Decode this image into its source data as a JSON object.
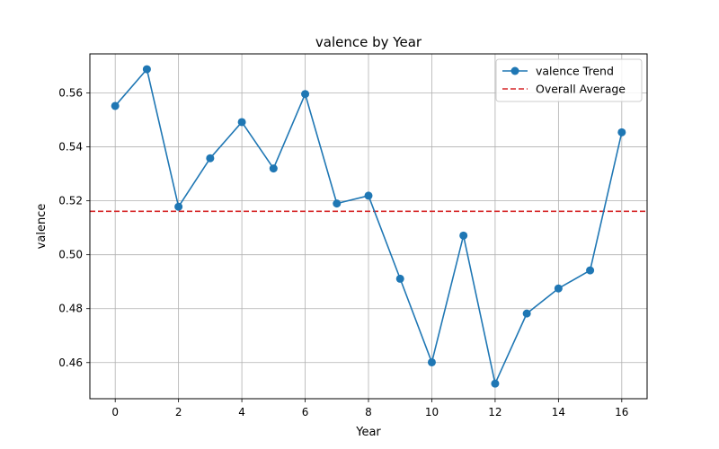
{
  "chart_data": {
    "type": "line",
    "title": "valence by Year",
    "xlabel": "Year",
    "ylabel": "valence",
    "x": [
      0,
      1,
      2,
      3,
      4,
      5,
      6,
      7,
      8,
      9,
      10,
      11,
      12,
      13,
      14,
      15,
      16
    ],
    "series": [
      {
        "name": "valence Trend",
        "values": [
          0.5552,
          0.5688,
          0.5178,
          0.5358,
          0.5492,
          0.532,
          0.5596,
          0.519,
          0.5219,
          0.4911,
          0.4601,
          0.5071,
          0.4522,
          0.4782,
          0.4875,
          0.4942,
          0.5454
        ],
        "color": "#1f77b4",
        "style": "line-with-markers"
      }
    ],
    "reference_lines": [
      {
        "name": "Overall Average",
        "value": 0.5161,
        "color": "#d62728",
        "style": "dashed"
      }
    ],
    "xlim": [
      -0.8,
      16.8
    ],
    "ylim": [
      0.4466,
      0.5745
    ],
    "xticks": [
      0,
      2,
      4,
      6,
      8,
      10,
      12,
      14,
      16
    ],
    "yticks": [
      0.46,
      0.48,
      0.5,
      0.52,
      0.54,
      0.56
    ],
    "ytick_labels": [
      "0.46",
      "0.48",
      "0.50",
      "0.52",
      "0.54",
      "0.56"
    ],
    "grid": true,
    "legend_position": "top-right"
  }
}
